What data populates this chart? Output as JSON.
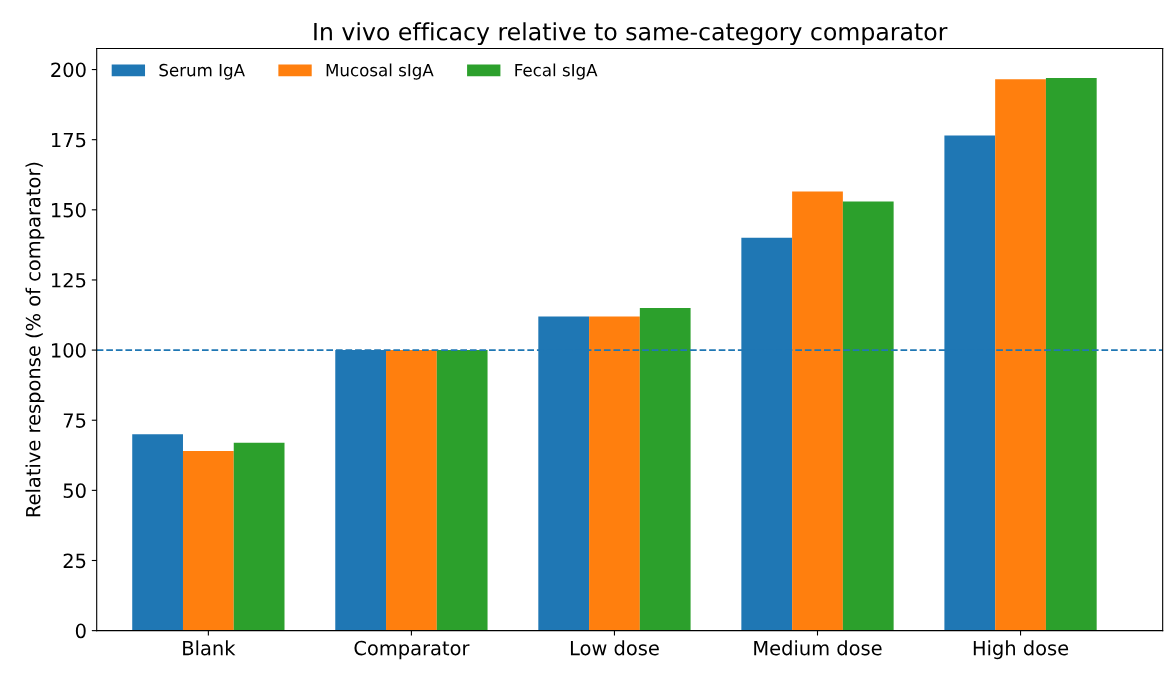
{
  "chart_data": {
    "type": "bar",
    "title": "In vivo efficacy relative to same-category comparator",
    "ylabel": "Relative response (% of comparator)",
    "categories": [
      "Blank",
      "Comparator",
      "Low dose",
      "Medium dose",
      "High dose"
    ],
    "series": [
      {
        "name": "Serum IgA",
        "color": "#1f77b4",
        "values": [
          70,
          100,
          112,
          140,
          176.5
        ]
      },
      {
        "name": "Mucosal sIgA",
        "color": "#ff7f0e",
        "values": [
          64,
          100,
          112,
          156.5,
          196.5
        ]
      },
      {
        "name": "Fecal sIgA",
        "color": "#2ca02c",
        "values": [
          67,
          100,
          115,
          153,
          197
        ]
      }
    ],
    "ylim": [
      0,
      207.5
    ],
    "yticks": [
      0,
      25,
      50,
      75,
      100,
      125,
      150,
      175,
      200
    ],
    "ref_lines": [
      {
        "axis": "y",
        "value": 100,
        "color": "#1f77b4",
        "line_style": "dashed"
      }
    ],
    "legend": "top left",
    "grid": false
  }
}
